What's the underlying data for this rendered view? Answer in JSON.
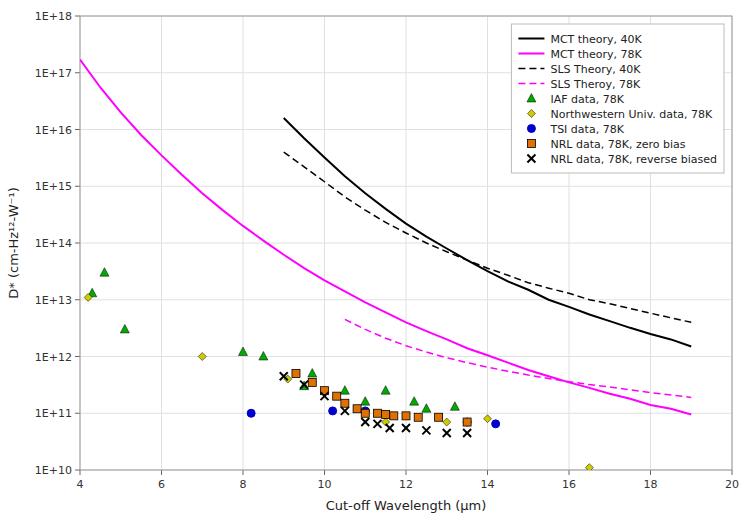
{
  "chart_data": {
    "type": "line",
    "xlabel": "Cut-off Wavelength (μm)",
    "ylabel": "D* (cm-Hz¹²-W⁻¹)",
    "log": "y",
    "grid": true,
    "legend": "upper right",
    "xlim": [
      4,
      20
    ],
    "xticks": [
      4,
      6,
      8,
      10,
      12,
      14,
      16,
      18,
      20
    ],
    "ylim": [
      10000000000.0,
      1e+18
    ],
    "yticks": [
      {
        "value": 10000000000.0,
        "label": "1E+10"
      },
      {
        "value": 100000000000.0,
        "label": "1E+11"
      },
      {
        "value": 1000000000000.0,
        "label": "1E+12"
      },
      {
        "value": 10000000000000.0,
        "label": "1E+13"
      },
      {
        "value": 100000000000000.0,
        "label": "1E+14"
      },
      {
        "value": 1000000000000000.0,
        "label": "1E+15"
      },
      {
        "value": 1e+16,
        "label": "1E+16"
      },
      {
        "value": 1e+17,
        "label": "1E+17"
      },
      {
        "value": 1e+18,
        "label": "1E+18"
      }
    ],
    "series": [
      {
        "name": "MCT theory, 40K",
        "type": "line",
        "color": "#000000",
        "line_style": "solid",
        "x": [
          9.0,
          9.5,
          10.0,
          10.5,
          11.0,
          11.5,
          12.0,
          12.5,
          13.0,
          13.5,
          14.0,
          14.5,
          15.0,
          15.5,
          16.0,
          16.5,
          17.0,
          17.5,
          18.0,
          18.5,
          19.0
        ],
        "values": [
          1.6e+16,
          7000000000000000.0,
          3200000000000000.0,
          1500000000000000.0,
          750000000000000.0,
          400000000000000.0,
          220000000000000.0,
          130000000000000.0,
          80000000000000.0,
          50000000000000.0,
          32000000000000.0,
          21000000000000.0,
          15000000000000.0,
          10000000000000.0,
          7500000000000.0,
          5500000000000.0,
          4200000000000.0,
          3200000000000.0,
          2500000000000.0,
          2000000000000.0,
          1500000000000.0
        ]
      },
      {
        "name": "MCT theory, 78K",
        "type": "line",
        "color": "#ff00ff",
        "line_style": "solid",
        "x": [
          4.0,
          4.5,
          5.0,
          5.5,
          6.0,
          6.5,
          7.0,
          7.5,
          8.0,
          8.5,
          9.0,
          9.5,
          10.0,
          10.5,
          11.0,
          11.5,
          12.0,
          12.5,
          13.0,
          13.5,
          14.0,
          14.5,
          15.0,
          15.5,
          16.0,
          16.5,
          17.0,
          17.5,
          18.0,
          18.5,
          19.0
        ],
        "values": [
          1.7e+17,
          5.5e+16,
          2e+16,
          8000000000000000.0,
          3500000000000000.0,
          1600000000000000.0,
          750000000000000.0,
          380000000000000.0,
          200000000000000.0,
          110000000000000.0,
          62000000000000.0,
          36000000000000.0,
          22000000000000.0,
          14000000000000.0,
          9000000000000.0,
          6000000000000.0,
          4000000000000.0,
          2800000000000.0,
          2000000000000.0,
          1400000000000.0,
          1050000000000.0,
          780000000000.0,
          580000000000.0,
          450000000000.0,
          350000000000.0,
          280000000000.0,
          220000000000.0,
          180000000000.0,
          140000000000.0,
          120000000000.0,
          95000000000.0
        ]
      },
      {
        "name": "SLS Theory, 40K",
        "type": "line",
        "color": "#000000",
        "line_style": "dashed",
        "x": [
          9.0,
          9.5,
          10.0,
          10.5,
          11.0,
          11.5,
          12.0,
          12.5,
          13.0,
          13.5,
          14.0,
          14.5,
          15.0,
          15.5,
          16.0,
          16.5,
          17.0,
          17.5,
          18.0,
          18.5,
          19.0
        ],
        "values": [
          4000000000000000.0,
          2200000000000000.0,
          1200000000000000.0,
          650000000000000.0,
          380000000000000.0,
          230000000000000.0,
          150000000000000.0,
          100000000000000.0,
          70000000000000.0,
          50000000000000.0,
          36000000000000.0,
          27000000000000.0,
          20000000000000.0,
          16000000000000.0,
          13000000000000.0,
          10000000000000.0,
          8500000000000.0,
          7000000000000.0,
          5800000000000.0,
          4800000000000.0,
          4000000000000.0
        ]
      },
      {
        "name": "SLS Theroy, 78K",
        "type": "line",
        "color": "#ff00ff",
        "line_style": "dashed",
        "x": [
          10.5,
          11.0,
          11.5,
          12.0,
          12.5,
          13.0,
          13.5,
          14.0,
          14.5,
          15.0,
          15.5,
          16.0,
          16.5,
          17.0,
          17.5,
          18.0,
          18.5,
          19.0
        ],
        "values": [
          4500000000000.0,
          3000000000000.0,
          2100000000000.0,
          1550000000000.0,
          1200000000000.0,
          950000000000.0,
          780000000000.0,
          650000000000.0,
          550000000000.0,
          470000000000.0,
          410000000000.0,
          360000000000.0,
          320000000000.0,
          290000000000.0,
          260000000000.0,
          230000000000.0,
          210000000000.0,
          190000000000.0
        ]
      },
      {
        "name": "IAF data, 78K",
        "type": "scatter",
        "color": "#00aa00",
        "marker": "triangle",
        "x": [
          4.3,
          4.6,
          5.1,
          8.0,
          8.5,
          9.5,
          9.7,
          10.5,
          11.0,
          11.5,
          12.2,
          12.5,
          13.2
        ],
        "values": [
          13000000000000.0,
          30000000000000.0,
          3000000000000.0,
          1200000000000.0,
          1000000000000.0,
          300000000000.0,
          500000000000.0,
          250000000000.0,
          160000000000.0,
          250000000000.0,
          160000000000.0,
          120000000000.0,
          130000000000.0
        ]
      },
      {
        "name": "Northwestern Univ. data, 78K",
        "type": "scatter",
        "color": "#cccc00",
        "marker": "diamond",
        "x": [
          4.2,
          7.0,
          9.1,
          11.5,
          13.0,
          14.0,
          16.5
        ],
        "values": [
          11000000000000.0,
          1000000000000.0,
          400000000000.0,
          70000000000.0,
          70000000000.0,
          80000000000.0,
          11000000000.0
        ]
      },
      {
        "name": "TSI data, 78K",
        "type": "scatter",
        "color": "#0000cc",
        "marker": "circle",
        "x": [
          8.2,
          10.2,
          11.0,
          13.5,
          14.2
        ],
        "values": [
          100000000000.0,
          110000000000.0,
          110000000000.0,
          70000000000.0,
          65000000000.0
        ]
      },
      {
        "name": "NRL data, 78K, zero bias",
        "type": "scatter",
        "color": "#e07000",
        "marker": "square",
        "x": [
          9.3,
          9.7,
          10.0,
          10.3,
          10.5,
          10.8,
          11.0,
          11.3,
          11.5,
          11.7,
          12.0,
          12.3,
          12.8,
          13.5
        ],
        "values": [
          500000000000.0,
          350000000000.0,
          250000000000.0,
          200000000000.0,
          150000000000.0,
          120000000000.0,
          100000000000.0,
          100000000000.0,
          95000000000.0,
          90000000000.0,
          90000000000.0,
          85000000000.0,
          85000000000.0,
          70000000000.0
        ]
      },
      {
        "name": "NRL data, 78K, reverse biased",
        "type": "scatter",
        "color": "#000000",
        "marker": "x",
        "x": [
          9.0,
          9.5,
          10.0,
          10.5,
          11.0,
          11.3,
          11.6,
          12.0,
          12.5,
          13.0,
          13.5
        ],
        "values": [
          450000000000.0,
          320000000000.0,
          200000000000.0,
          110000000000.0,
          70000000000.0,
          65000000000.0,
          55000000000.0,
          55000000000.0,
          50000000000.0,
          45000000000.0,
          45000000000.0
        ]
      }
    ]
  }
}
